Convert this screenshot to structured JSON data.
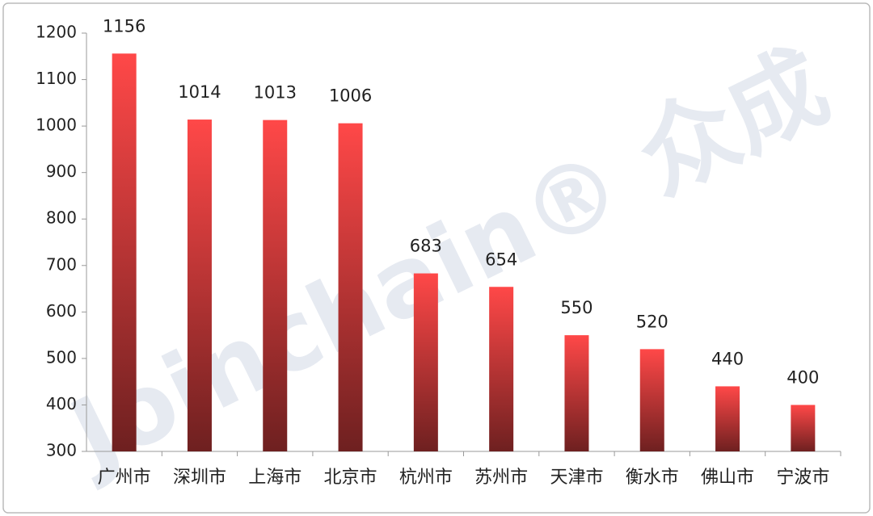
{
  "chart_data": {
    "type": "bar",
    "watermark": "Joinchain® 众成",
    "categories": [
      "广州市",
      "深圳市",
      "上海市",
      "北京市",
      "杭州市",
      "苏州市",
      "天津市",
      "衡水市",
      "佛山市",
      "宁波市"
    ],
    "values": [
      1156,
      1014,
      1013,
      1006,
      683,
      654,
      550,
      520,
      440,
      400
    ],
    "color": [
      "#ff4848",
      "#6e2020"
    ],
    "ylim": [
      300,
      1200
    ],
    "yticks": [
      300,
      400,
      500,
      600,
      700,
      800,
      900,
      1000,
      1100,
      1200
    ],
    "grid": false
  }
}
